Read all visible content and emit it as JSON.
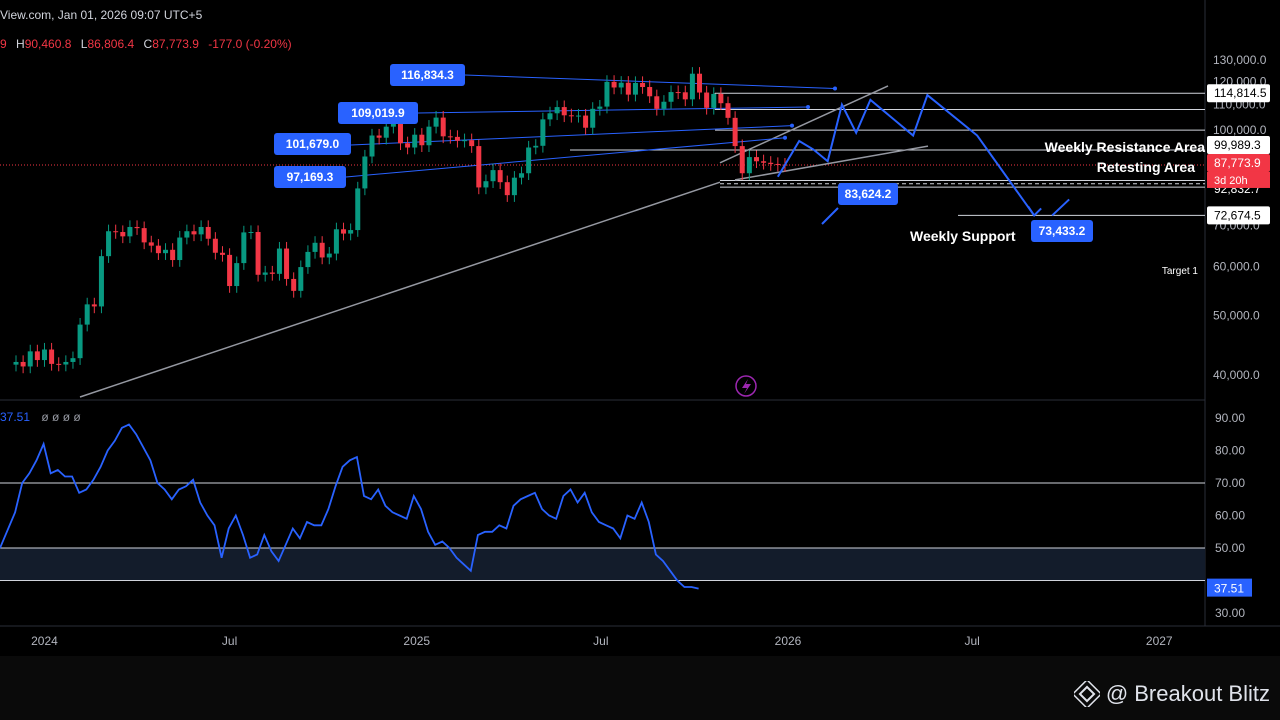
{
  "header": {
    "source_line": "View.com, Jan 01, 2026 09:07 UTC+5",
    "ohlc": {
      "o": "9",
      "h": "90,460.8",
      "l": "86,806.4",
      "c": "87,773.9",
      "change": "-177.0 (-0.20%)"
    }
  },
  "rsi": {
    "value_label": "37.51",
    "extra": "ø ø ø ø",
    "level_labels": [
      "90.00",
      "80.00",
      "70.00",
      "60.00",
      "50.00",
      "40.00",
      "30.00"
    ]
  },
  "price_axis": {
    "ticks": [
      "130,000.0",
      "120,000.0",
      "110,000.0",
      "100,000.0",
      "90,000.0",
      "80,000.0",
      "70,000.0",
      "60,000.0",
      "50,000.0",
      "40,000.0"
    ]
  },
  "time_axis": {
    "labels": [
      "2024",
      "Jul",
      "2025",
      "Jul",
      "2026",
      "Jul",
      "2027"
    ]
  },
  "annotations": {
    "callouts": [
      "116,834.3",
      "109,019.9",
      "101,679.0",
      "97,169.3",
      "83,624.2",
      "73,433.2"
    ],
    "zone_labels": [
      "Weekly Resistance Area",
      "Retesting Area",
      "Weekly Support",
      "Target 1"
    ],
    "price_flags": [
      "114,814.5",
      "99,989.3",
      "92,832.7",
      "87,773.9",
      "3d 20h",
      "72,674.5",
      "37.51"
    ]
  },
  "brand": {
    "text": "@ Breakout Blitz"
  },
  "colors": {
    "up": "#089981",
    "down": "#f23645",
    "projection": "#2962ff",
    "rsi_line": "#2962ff",
    "callout_bg": "#2962ff",
    "background": "#000000"
  },
  "chart_data": [
    {
      "type": "candlestick",
      "title": "",
      "x_unit": "week",
      "y_scale": "log",
      "ylim": [
        30000,
        140000
      ],
      "ohlc_close_series": [
        [
          "2023-12-04",
          42000
        ],
        [
          "2023-12-11",
          41300
        ],
        [
          "2023-12-18",
          43700
        ],
        [
          "2023-12-25",
          42300
        ],
        [
          "2024-01-01",
          44000
        ],
        [
          "2024-01-08",
          41700
        ],
        [
          "2024-01-15",
          41600
        ],
        [
          "2024-01-22",
          42000
        ],
        [
          "2024-01-29",
          42600
        ],
        [
          "2024-02-05",
          48300
        ],
        [
          "2024-02-12",
          52100
        ],
        [
          "2024-02-19",
          51700
        ],
        [
          "2024-02-26",
          62400
        ],
        [
          "2024-03-04",
          68500
        ],
        [
          "2024-03-11",
          68300
        ],
        [
          "2024-03-18",
          67200
        ],
        [
          "2024-03-25",
          69600
        ],
        [
          "2024-04-01",
          69300
        ],
        [
          "2024-04-08",
          65700
        ],
        [
          "2024-04-15",
          64900
        ],
        [
          "2024-04-22",
          63100
        ],
        [
          "2024-04-29",
          63900
        ],
        [
          "2024-05-06",
          61500
        ],
        [
          "2024-05-13",
          66900
        ],
        [
          "2024-05-20",
          68500
        ],
        [
          "2024-05-27",
          67700
        ],
        [
          "2024-06-03",
          69600
        ],
        [
          "2024-06-10",
          66600
        ],
        [
          "2024-06-17",
          63200
        ],
        [
          "2024-06-24",
          62700
        ],
        [
          "2024-07-01",
          55800
        ],
        [
          "2024-07-08",
          60800
        ],
        [
          "2024-07-15",
          68200
        ],
        [
          "2024-07-22",
          68300
        ],
        [
          "2024-07-29",
          58200
        ],
        [
          "2024-08-05",
          58700
        ],
        [
          "2024-08-12",
          58400
        ],
        [
          "2024-08-19",
          64200
        ],
        [
          "2024-08-26",
          57300
        ],
        [
          "2024-09-02",
          54800
        ],
        [
          "2024-09-09",
          59900
        ],
        [
          "2024-09-16",
          63400
        ],
        [
          "2024-09-23",
          65600
        ],
        [
          "2024-09-30",
          62100
        ],
        [
          "2024-10-07",
          63000
        ],
        [
          "2024-10-14",
          69000
        ],
        [
          "2024-10-21",
          67900
        ],
        [
          "2024-10-28",
          68800
        ],
        [
          "2024-11-04",
          80400
        ],
        [
          "2024-11-11",
          90600
        ],
        [
          "2024-11-18",
          98000
        ],
        [
          "2024-11-25",
          97200
        ],
        [
          "2024-12-02",
          101300
        ],
        [
          "2024-12-09",
          106200
        ],
        [
          "2024-12-16",
          95200
        ],
        [
          "2024-12-23",
          93700
        ],
        [
          "2024-12-30",
          98300
        ],
        [
          "2025-01-06",
          94500
        ],
        [
          "2025-01-13",
          101300
        ],
        [
          "2025-01-20",
          104800
        ],
        [
          "2025-01-27",
          97700
        ],
        [
          "2025-02-03",
          97500
        ],
        [
          "2025-02-10",
          96100
        ],
        [
          "2025-02-17",
          96300
        ],
        [
          "2025-02-24",
          94200
        ],
        [
          "2025-03-03",
          80700
        ],
        [
          "2025-03-10",
          82600
        ],
        [
          "2025-03-17",
          86100
        ],
        [
          "2025-03-24",
          82300
        ],
        [
          "2025-03-31",
          78400
        ],
        [
          "2025-04-07",
          83700
        ],
        [
          "2025-04-14",
          85100
        ],
        [
          "2025-04-21",
          93700
        ],
        [
          "2025-04-28",
          94300
        ],
        [
          "2025-05-05",
          104100
        ],
        [
          "2025-05-12",
          106500
        ],
        [
          "2025-05-19",
          109000
        ],
        [
          "2025-05-26",
          105700
        ],
        [
          "2025-06-02",
          105500
        ],
        [
          "2025-06-09",
          105600
        ],
        [
          "2025-06-16",
          100900
        ],
        [
          "2025-06-23",
          108300
        ],
        [
          "2025-06-30",
          109200
        ],
        [
          "2025-07-07",
          119800
        ],
        [
          "2025-07-14",
          117300
        ],
        [
          "2025-07-21",
          119400
        ],
        [
          "2025-07-28",
          114200
        ],
        [
          "2025-08-04",
          119300
        ],
        [
          "2025-08-11",
          117500
        ],
        [
          "2025-08-18",
          113500
        ],
        [
          "2025-08-25",
          108300
        ],
        [
          "2025-09-01",
          111200
        ],
        [
          "2025-09-08",
          115300
        ],
        [
          "2025-09-15",
          115200
        ],
        [
          "2025-09-22",
          112200
        ],
        [
          "2025-09-29",
          123500
        ],
        [
          "2025-10-06",
          115100
        ],
        [
          "2025-10-13",
          108700
        ],
        [
          "2025-10-20",
          114500
        ],
        [
          "2025-10-27",
          110600
        ],
        [
          "2025-11-03",
          104700
        ],
        [
          "2025-11-10",
          94200
        ],
        [
          "2025-11-17",
          85100
        ],
        [
          "2025-11-24",
          90400
        ],
        [
          "2025-12-01",
          89000
        ],
        [
          "2025-12-08",
          88500
        ],
        [
          "2025-12-15",
          88100
        ],
        [
          "2025-12-22",
          87900
        ],
        [
          "2025-12-29",
          87773.9
        ]
      ],
      "horizontal_levels": [
        {
          "label": "Weekly Resistance Area",
          "from": 99989.3,
          "to": 114814.5
        },
        {
          "label": "Retesting Area",
          "value": 92832.7
        },
        {
          "label": "Weekly Support",
          "from": 80000,
          "to": 83624.2
        },
        {
          "label": "Target 1",
          "value": 72674.5
        }
      ],
      "projection_path": [
        [
          "2025-12-22",
          84000
        ],
        [
          "2026-01-12",
          96000
        ],
        [
          "2026-01-26",
          93000
        ],
        [
          "2026-02-09",
          89000
        ],
        [
          "2026-02-23",
          110000
        ],
        [
          "2026-03-09",
          99000
        ],
        [
          "2026-03-23",
          112000
        ],
        [
          "2026-05-04",
          98000
        ],
        [
          "2026-05-18",
          114000
        ],
        [
          "2026-07-06",
          98000
        ],
        [
          "2026-08-31",
          72674.5
        ]
      ]
    },
    {
      "type": "line",
      "title": "",
      "series": [
        {
          "name": "RSI",
          "values": [
            50,
            61,
            70,
            73,
            77,
            82,
            73,
            74,
            72,
            72,
            67,
            68,
            71,
            75,
            80,
            83,
            87,
            88,
            85,
            81,
            77,
            70,
            68,
            65,
            68,
            69,
            71,
            64,
            60,
            57,
            47,
            56,
            60,
            54,
            47,
            48,
            54,
            49,
            46,
            51,
            56,
            53,
            58,
            57,
            57,
            62,
            69,
            75,
            77,
            78,
            66,
            65,
            68,
            63,
            61,
            60,
            59,
            66,
            62,
            55,
            51,
            52,
            50,
            47,
            45,
            43,
            54,
            55,
            55,
            57,
            56,
            63,
            65,
            66,
            67,
            62,
            60,
            59,
            66,
            68,
            64,
            67,
            61,
            58,
            57,
            56,
            53,
            60,
            59,
            64,
            58,
            48,
            46,
            43,
            40,
            38,
            38,
            37.5
          ]
        }
      ],
      "ylim": [
        30,
        95
      ],
      "reference_lines": [
        70,
        50,
        40
      ]
    }
  ]
}
